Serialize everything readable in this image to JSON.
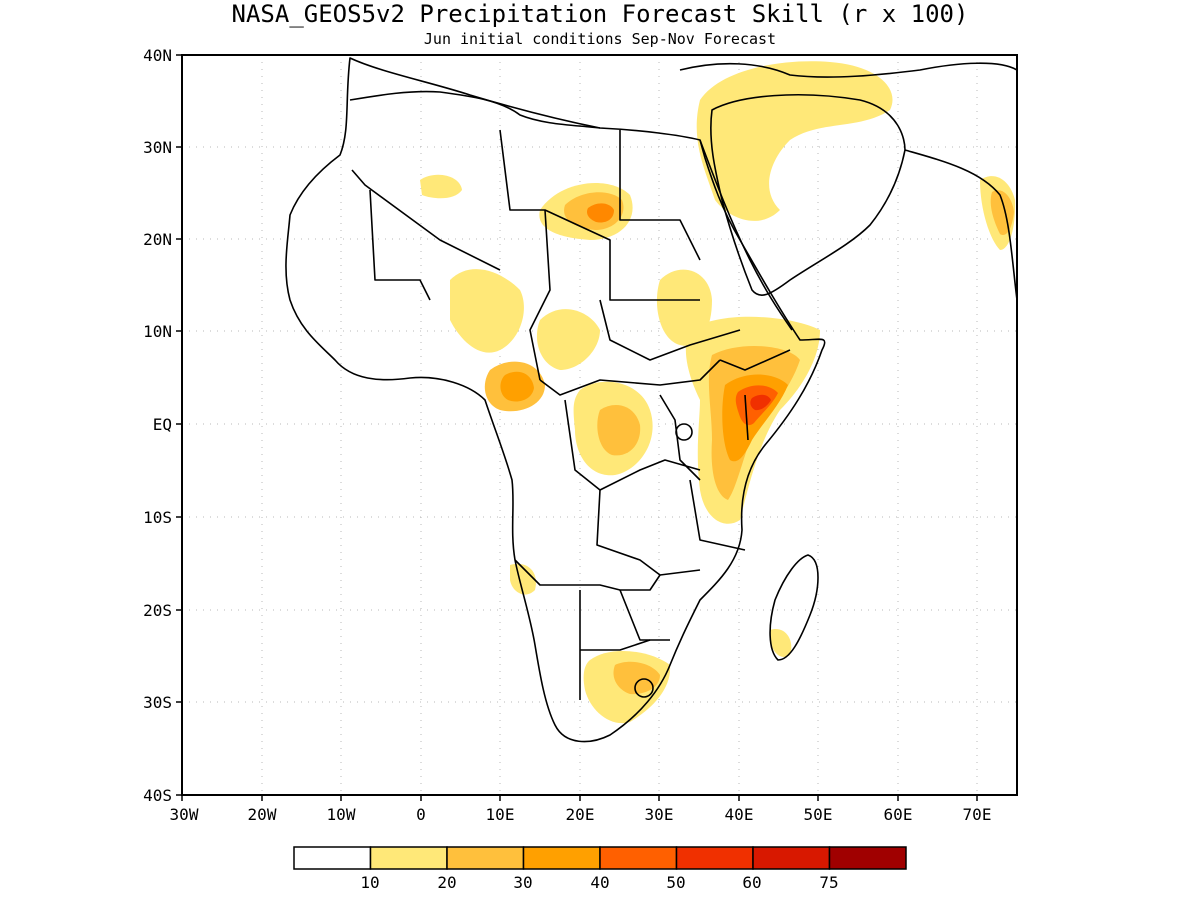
{
  "title": "NASA_GEOS5v2 Precipitation Forecast Skill (r x 100)",
  "subtitle": "Jun initial conditions  Sep-Nov Forecast",
  "lat_ticks": [
    "40N",
    "30N",
    "20N",
    "10N",
    "EQ",
    "10S",
    "20S",
    "30S",
    "40S"
  ],
  "lon_ticks": [
    "30W",
    "20W",
    "10W",
    "0",
    "10E",
    "20E",
    "30E",
    "40E",
    "50E",
    "60E",
    "70E"
  ],
  "legend": {
    "labels": [
      "10",
      "20",
      "30",
      "40",
      "50",
      "60",
      "75"
    ],
    "colors": [
      "#ffffff",
      "#ffe878",
      "#ffc03c",
      "#ffa000",
      "#ff6000",
      "#f03000",
      "#d81800",
      "#a00000"
    ]
  },
  "map": {
    "lat_range": [
      -40,
      40
    ],
    "lon_range": [
      -30,
      75
    ],
    "grid": "dotted",
    "coastline_color": "#000000"
  }
}
